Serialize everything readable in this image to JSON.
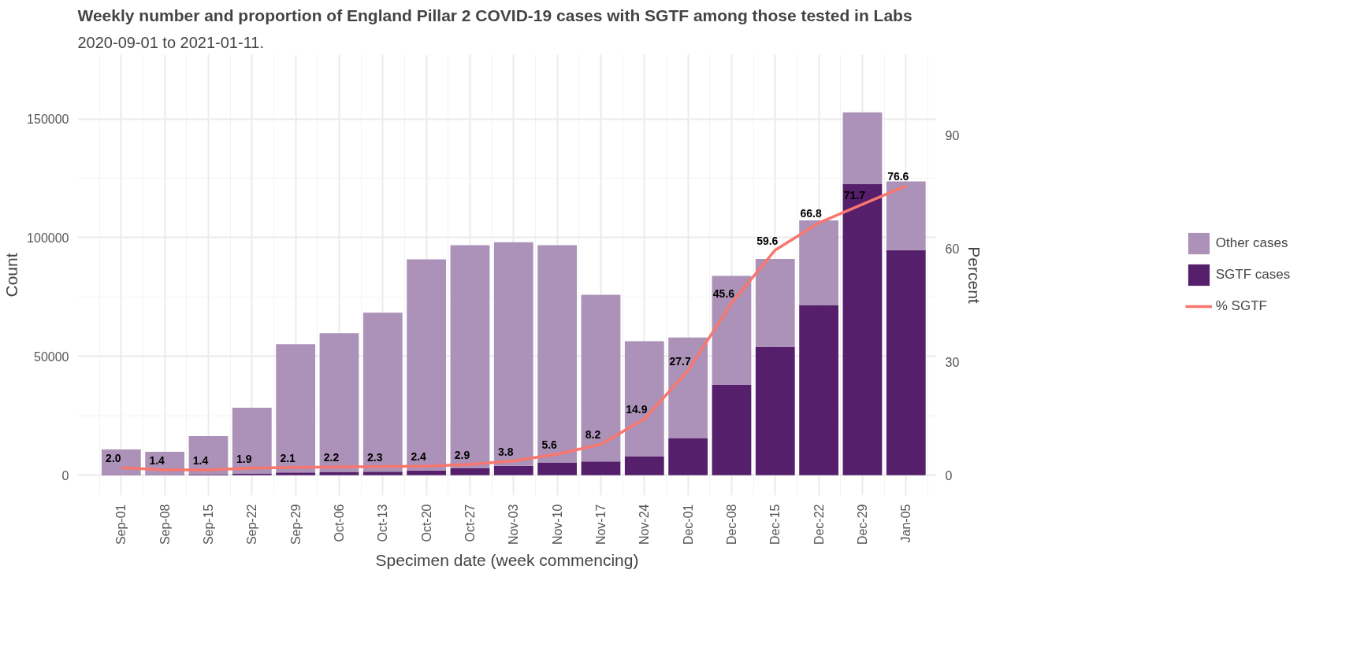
{
  "chart_data": {
    "type": "bar",
    "title": "Weekly number and proportion of England Pillar 2 COVID-19 cases with SGTF among those tested in Labs",
    "subtitle": "2020-09-01 to 2021-01-11.",
    "xlabel": "Specimen date (week commencing)",
    "ylabel": "Count",
    "y2label": "Percent",
    "categories": [
      "Sep-01",
      "Sep-08",
      "Sep-15",
      "Sep-22",
      "Sep-29",
      "Oct-06",
      "Oct-13",
      "Oct-20",
      "Oct-27",
      "Nov-03",
      "Nov-10",
      "Nov-17",
      "Nov-24",
      "Dec-01",
      "Dec-08",
      "Dec-15",
      "Dec-22",
      "Dec-29",
      "Jan-05"
    ],
    "stacked": true,
    "series": [
      {
        "name": "SGTF cases",
        "color": "#561f6c",
        "values": [
          200,
          200,
          300,
          600,
          1200,
          1400,
          1500,
          2000,
          2900,
          4000,
          5400,
          5800,
          8000,
          15700,
          38000,
          54100,
          71700,
          122500,
          94800
        ]
      },
      {
        "name": "Other cases",
        "color": "#ac92b8",
        "values": [
          10700,
          9700,
          16200,
          27800,
          54000,
          58400,
          66900,
          88900,
          93900,
          94100,
          91400,
          70200,
          48400,
          42300,
          45900,
          36900,
          35600,
          30200,
          28900
        ]
      },
      {
        "name": "% SGTF",
        "type": "line",
        "axis": "y2",
        "color": "#f8766d",
        "values": [
          2.0,
          1.4,
          1.4,
          1.9,
          2.1,
          2.2,
          2.3,
          2.4,
          2.9,
          3.8,
          5.6,
          8.2,
          14.9,
          27.7,
          45.6,
          59.6,
          66.8,
          71.7,
          76.6
        ],
        "value_labels": [
          "2.0",
          "1.4",
          "1.4",
          "1.9",
          "2.1",
          "2.2",
          "2.3",
          "2.4",
          "2.9",
          "3.8",
          "5.6",
          "8.2",
          "14.9",
          "27.7",
          "45.6",
          "59.6",
          "66.8",
          "71.7",
          "76.6"
        ]
      }
    ],
    "ylim": [
      -8500,
      177000
    ],
    "yticks": [
      0,
      50000,
      100000,
      150000
    ],
    "y2lim": [
      -5.35,
      111.3
    ],
    "y2ticks": [
      0,
      30,
      60,
      90
    ],
    "grid": true,
    "legend": "right"
  }
}
